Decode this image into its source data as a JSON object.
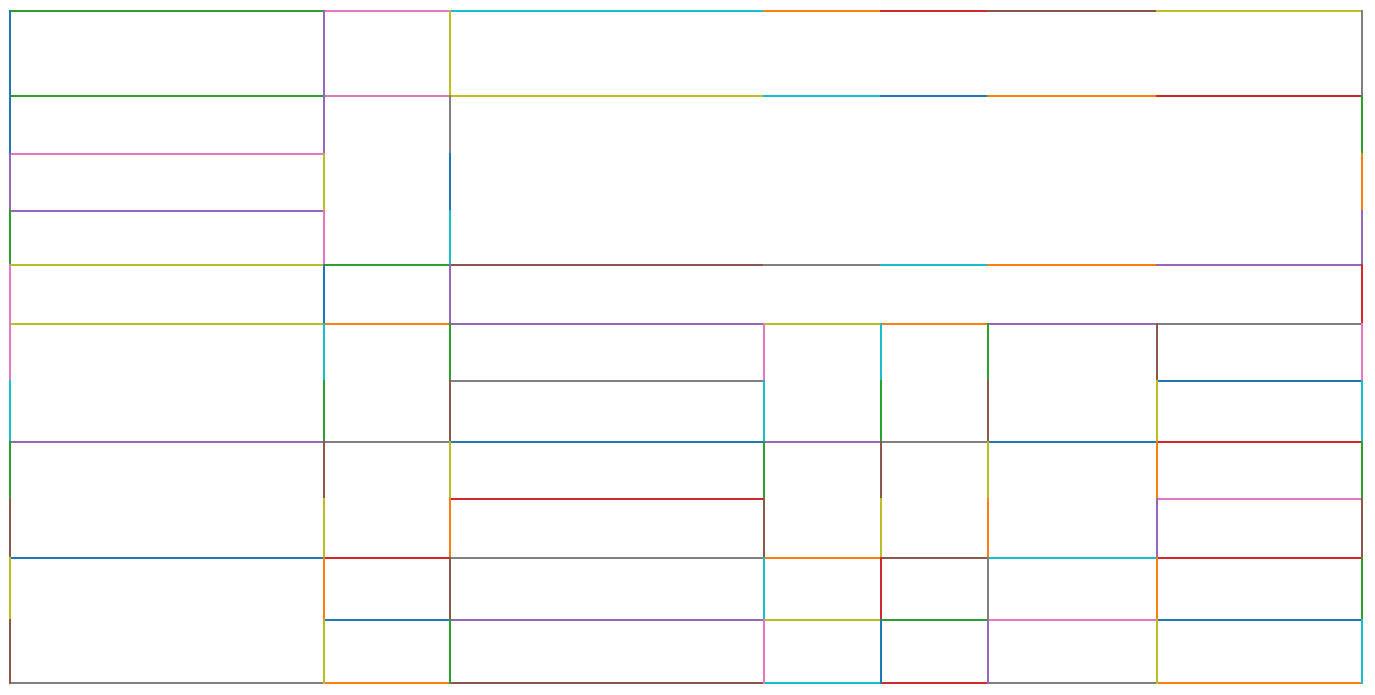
{
  "diagram": {
    "background": "#ffffff",
    "palette": {
      "blue": "#1f77b4",
      "orange": "#ff7f0e",
      "green": "#2ca02c",
      "red": "#d62728",
      "purple": "#9467bd",
      "brown": "#8c564b",
      "pink": "#e377c2",
      "gray": "#7f7f7f",
      "olive": "#bcbd22",
      "cyan": "#17becf"
    }
  }
}
